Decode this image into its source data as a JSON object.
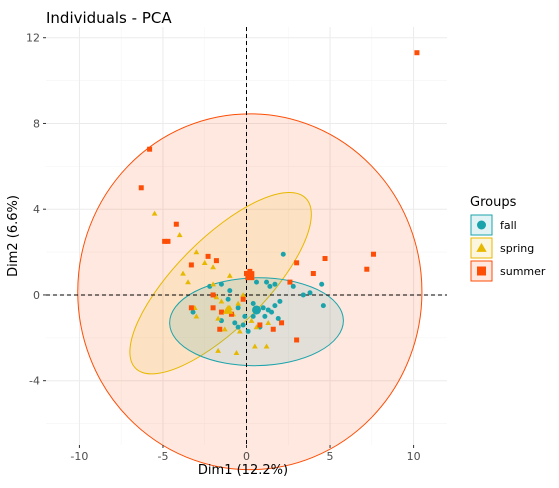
{
  "chart_data": {
    "type": "scatter",
    "title": "Individuals - PCA",
    "xlabel": "Dim1 (12.2%)",
    "ylabel": "Dim2 (6.6%)",
    "xlim": [
      -12,
      12
    ],
    "ylim": [
      -7,
      12.5
    ],
    "xticks": [
      -10,
      -5,
      0,
      5,
      10
    ],
    "yticks": [
      -4,
      0,
      4,
      8,
      12
    ],
    "grid": true,
    "reference_lines": {
      "x": 0,
      "y": 0,
      "style": "dashed"
    },
    "legend": {
      "title": "Groups",
      "placement": "right"
    },
    "series": [
      {
        "name": "fall",
        "color": "#1ba3ab",
        "marker": "circle",
        "points": [
          [
            2.2,
            1.9
          ],
          [
            2.8,
            0.4
          ],
          [
            4.5,
            0.5
          ],
          [
            4.6,
            -0.5
          ],
          [
            3.8,
            0.1
          ],
          [
            3.4,
            0.0
          ],
          [
            1.7,
            0.5
          ],
          [
            1.2,
            0.6
          ],
          [
            1.4,
            0.4
          ],
          [
            0.6,
            0.6
          ],
          [
            -1.5,
            0.5
          ],
          [
            -2.2,
            0.4
          ],
          [
            -1.0,
            0.2
          ],
          [
            0.4,
            -0.4
          ],
          [
            0.7,
            -0.7
          ],
          [
            1.0,
            -0.6
          ],
          [
            1.3,
            -0.7
          ],
          [
            1.5,
            -0.8
          ],
          [
            1.7,
            -0.5
          ],
          [
            2.0,
            -0.3
          ],
          [
            1.1,
            -1.0
          ],
          [
            1.9,
            -1.1
          ],
          [
            0.8,
            -1.5
          ],
          [
            0.4,
            -1.0
          ],
          [
            -0.1,
            -1.0
          ],
          [
            -0.2,
            -1.4
          ],
          [
            -0.7,
            -1.3
          ],
          [
            -1.5,
            -1.2
          ],
          [
            -0.5,
            -1.5
          ],
          [
            -1.1,
            -0.2
          ],
          [
            -0.5,
            -0.6
          ],
          [
            0.1,
            -1.7
          ],
          [
            -3.2,
            -0.8
          ]
        ],
        "centroid": [
          0.6,
          -0.7
        ],
        "ellipse": {
          "center": [
            0.6,
            -1.25
          ],
          "rx": 5.2,
          "ry": 2.05,
          "angle": -1
        }
      },
      {
        "name": "spring",
        "color": "#e7b800",
        "marker": "triangle",
        "points": [
          [
            -5.5,
            3.8
          ],
          [
            -4.0,
            2.8
          ],
          [
            -3.0,
            2.0
          ],
          [
            -2.5,
            1.5
          ],
          [
            -3.8,
            1.0
          ],
          [
            -3.5,
            0.6
          ],
          [
            -2.0,
            1.3
          ],
          [
            -1.0,
            0.9
          ],
          [
            -2.0,
            0.5
          ],
          [
            -1.5,
            -0.3
          ],
          [
            -1.0,
            -0.6
          ],
          [
            -0.5,
            -0.4
          ],
          [
            -0.2,
            0.0
          ],
          [
            -0.8,
            -0.9
          ],
          [
            -1.7,
            -1.1
          ],
          [
            -1.3,
            -1.6
          ],
          [
            -0.4,
            -1.7
          ],
          [
            0.3,
            -1.2
          ],
          [
            0.6,
            -1.5
          ],
          [
            0.5,
            -2.4
          ],
          [
            1.2,
            -2.4
          ],
          [
            -0.6,
            -2.7
          ],
          [
            -1.7,
            -2.6
          ],
          [
            -3.1,
            -0.6
          ],
          [
            -3.0,
            -1.0
          ],
          [
            -1.8,
            -0.1
          ],
          [
            -1.2,
            -0.7
          ],
          [
            1.3,
            -1.3
          ]
        ],
        "centroid": [
          -1.1,
          -0.7
        ],
        "ellipse": {
          "center": [
            -1.55,
            0.55
          ],
          "rx": 7.2,
          "ry": 2.08,
          "angle": -45
        }
      },
      {
        "name": "summer",
        "color": "#fc4e07",
        "marker": "square",
        "points": [
          [
            10.2,
            11.3
          ],
          [
            -5.8,
            6.8
          ],
          [
            -6.3,
            5.0
          ],
          [
            -4.9,
            2.5
          ],
          [
            -4.7,
            2.5
          ],
          [
            -4.2,
            3.3
          ],
          [
            -3.3,
            1.4
          ],
          [
            -2.3,
            1.8
          ],
          [
            -1.8,
            1.6
          ],
          [
            7.6,
            1.9
          ],
          [
            7.2,
            1.2
          ],
          [
            4.7,
            1.7
          ],
          [
            3.0,
            1.5
          ],
          [
            2.6,
            0.6
          ],
          [
            0.2,
            1.1
          ],
          [
            0.2,
            1.0
          ],
          [
            0.0,
            1.0
          ],
          [
            -3.3,
            -0.6
          ],
          [
            -2.0,
            -0.6
          ],
          [
            -2.0,
            0.0
          ],
          [
            -1.5,
            -0.8
          ],
          [
            -0.9,
            -0.9
          ],
          [
            -1.6,
            -1.6
          ],
          [
            0.8,
            -1.4
          ],
          [
            1.6,
            -1.6
          ],
          [
            2.1,
            -1.3
          ],
          [
            3.0,
            -2.1
          ],
          [
            -0.2,
            -0.2
          ],
          [
            4.0,
            1.0
          ]
        ],
        "centroid": [
          0.2,
          0.9
        ],
        "ellipse": {
          "center": [
            0.2,
            0.15
          ],
          "rx": 10.3,
          "ry": 8.3,
          "angle": 0
        }
      }
    ]
  }
}
